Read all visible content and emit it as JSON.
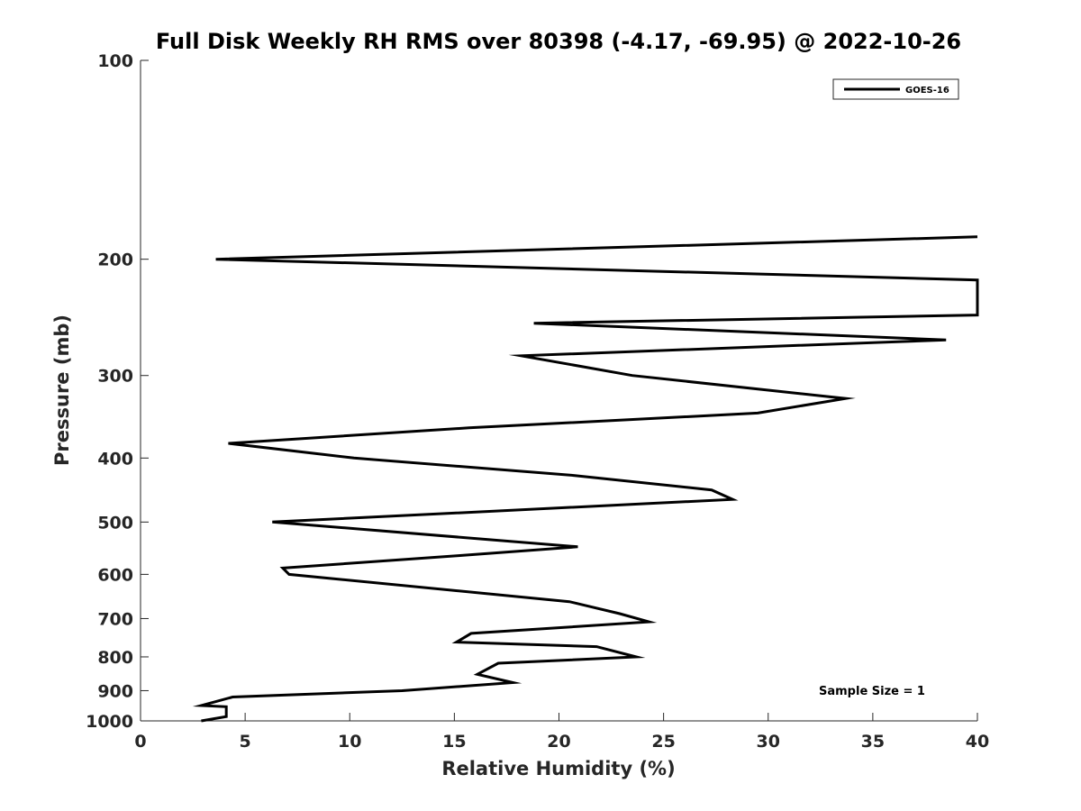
{
  "chart_data": {
    "type": "line",
    "title": "Full Disk Weekly RH RMS over 80398 (-4.17, -69.95) @ 2022-10-26",
    "xlabel": "Relative Humidity (%)",
    "ylabel": "Pressure (mb)",
    "xlim": [
      0,
      40
    ],
    "ylim": [
      100,
      1000
    ],
    "y_scale": "log",
    "y_reversed": true,
    "x_ticks": [
      0,
      5,
      10,
      15,
      20,
      25,
      30,
      35,
      40
    ],
    "y_ticks": [
      100,
      200,
      300,
      400,
      500,
      600,
      700,
      800,
      900,
      1000
    ],
    "grid": false,
    "legend_position": "top-right",
    "annotation": "Sample Size = 1",
    "series": [
      {
        "name": "GOES-16",
        "color": "#000000",
        "x": [
          40,
          3.6,
          40,
          40,
          18.8,
          38.5,
          18.2,
          23.5,
          33.7,
          29.5,
          15.7,
          4.2,
          10.2,
          20.7,
          27.3,
          28.3,
          6.3,
          20.9,
          15.2,
          6.8,
          7.1,
          20.5,
          22.9,
          24.3,
          15.8,
          15.1,
          21.8,
          23.7,
          17.1,
          16.1,
          17.8,
          12.5,
          4.4,
          2.9,
          4.1,
          4.1,
          2.9
        ],
        "y": [
          185,
          200,
          215,
          243,
          250,
          265,
          280,
          300,
          325,
          342,
          360,
          380,
          400,
          425,
          447,
          462,
          500,
          545,
          562,
          587,
          600,
          660,
          688,
          708,
          737,
          760,
          772,
          800,
          818,
          850,
          875,
          900,
          920,
          948,
          952,
          985,
          1000
        ]
      }
    ]
  }
}
